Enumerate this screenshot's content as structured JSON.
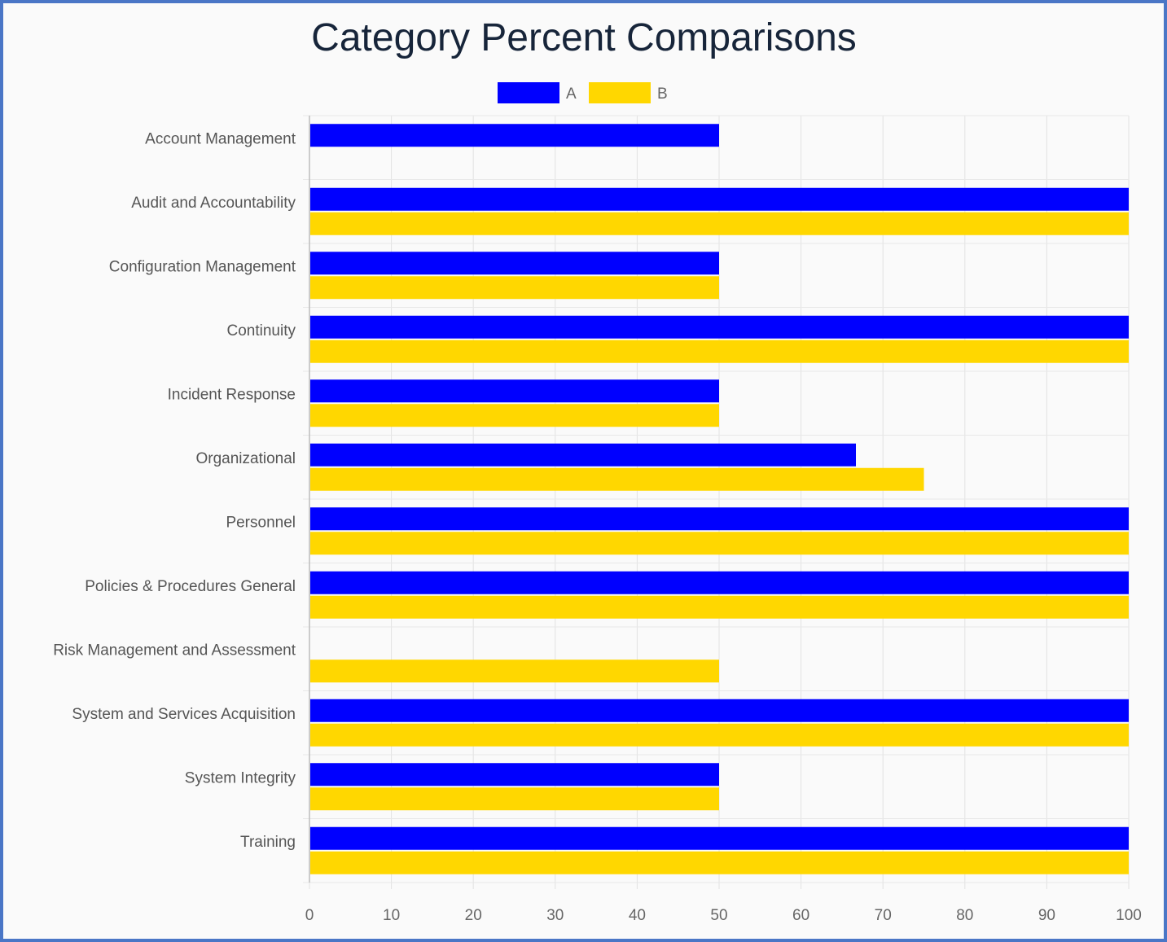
{
  "chart_data": {
    "type": "bar",
    "orientation": "horizontal",
    "title": "Category Percent Comparisons",
    "categories": [
      "Account Management",
      "Audit and Accountability",
      "Configuration Management",
      "Continuity",
      "Incident Response",
      "Organizational",
      "Personnel",
      "Policies & Procedures General",
      "Risk Management and Assessment",
      "System and Services Acquisition",
      "System Integrity",
      "Training"
    ],
    "series": [
      {
        "name": "A",
        "color": "#0000ff",
        "values": [
          50,
          100,
          50,
          100,
          50,
          66.7,
          100,
          100,
          0,
          100,
          50,
          100
        ]
      },
      {
        "name": "B",
        "color": "#ffd700",
        "values": [
          0,
          100,
          50,
          100,
          50,
          75,
          100,
          100,
          50,
          100,
          50,
          100
        ]
      }
    ],
    "xlim": [
      0,
      100
    ],
    "x_ticks": [
      "0",
      "10",
      "20",
      "30",
      "40",
      "50",
      "60",
      "70",
      "80",
      "90",
      "100"
    ],
    "grid": true,
    "legend_position": "top-center"
  }
}
